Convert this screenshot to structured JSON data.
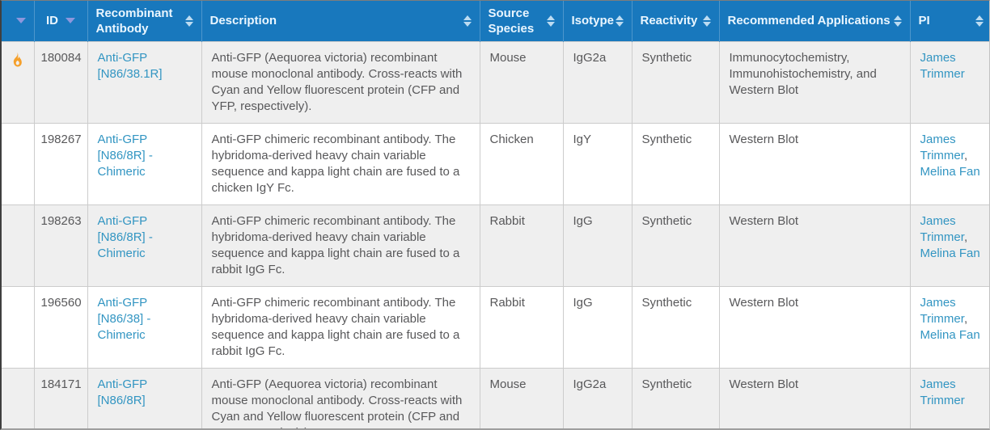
{
  "table": {
    "columns": [
      {
        "key": "hot",
        "label": "",
        "header_icon": "flame-icon",
        "sort_indicator": "dropdown-caret"
      },
      {
        "key": "id",
        "label": "ID",
        "sort_indicator": "dropdown-caret"
      },
      {
        "key": "antibody",
        "label": "Recombinant Antibody",
        "sort_indicator": "up-down-arrows"
      },
      {
        "key": "description",
        "label": "Description",
        "sort_indicator": "up-down-arrows"
      },
      {
        "key": "source",
        "label": "Source Species",
        "sort_indicator": "up-down-arrows"
      },
      {
        "key": "isotype",
        "label": "Isotype",
        "sort_indicator": "up-down-arrows"
      },
      {
        "key": "reactivity",
        "label": "Reactivity",
        "sort_indicator": "up-down-arrows"
      },
      {
        "key": "applications",
        "label": "Recommended Applications",
        "sort_indicator": "up-down-arrows"
      },
      {
        "key": "pi",
        "label": "PI",
        "sort_indicator": "up-down-arrows"
      }
    ],
    "rows": [
      {
        "hot": true,
        "id": "180084",
        "antibody": "Anti-GFP [N86/38.1R]",
        "description": "Anti-GFP (Aequorea victoria) recombinant mouse monoclonal antibody. Cross-reacts with Cyan and Yellow fluorescent protein (CFP and YFP, respectively).",
        "source": "Mouse",
        "isotype": "IgG2a",
        "reactivity": "Synthetic",
        "applications": "Immunocytochemistry, Immunohistochemistry, and Western Blot",
        "pi": [
          "James Trimmer"
        ]
      },
      {
        "hot": false,
        "id": "198267",
        "antibody": "Anti-GFP [N86/8R] - Chimeric",
        "description": "Anti-GFP chimeric recombinant antibody. The hybridoma-derived heavy chain variable sequence and kappa light chain are fused to a chicken IgY Fc.",
        "source": "Chicken",
        "isotype": "IgY",
        "reactivity": "Synthetic",
        "applications": "Western Blot",
        "pi": [
          "James Trimmer",
          "Melina Fan"
        ]
      },
      {
        "hot": false,
        "id": "198263",
        "antibody": "Anti-GFP [N86/8R] - Chimeric",
        "description": "Anti-GFP chimeric recombinant antibody. The hybridoma-derived heavy chain variable sequence and kappa light chain are fused to a rabbit IgG Fc.",
        "source": "Rabbit",
        "isotype": "IgG",
        "reactivity": "Synthetic",
        "applications": "Western Blot",
        "pi": [
          "James Trimmer",
          "Melina Fan"
        ]
      },
      {
        "hot": false,
        "id": "196560",
        "antibody": "Anti-GFP [N86/38] - Chimeric",
        "description": "Anti-GFP chimeric recombinant antibody. The hybridoma-derived heavy chain variable sequence and kappa light chain are fused to a rabbit IgG Fc.",
        "source": "Rabbit",
        "isotype": "IgG",
        "reactivity": "Synthetic",
        "applications": "Western Blot",
        "pi": [
          "James Trimmer",
          "Melina Fan"
        ]
      },
      {
        "hot": false,
        "id": "184171",
        "antibody": "Anti-GFP [N86/8R]",
        "description": "Anti-GFP (Aequorea victoria) recombinant mouse monoclonal antibody. Cross-reacts with Cyan and Yellow fluorescent protein (CFP and YFP, respectively).",
        "source": "Mouse",
        "isotype": "IgG2a",
        "reactivity": "Synthetic",
        "applications": "Western Blot",
        "pi": [
          "James Trimmer"
        ]
      }
    ]
  },
  "colors": {
    "header_bg": "#1878bd",
    "header_text": "#eaf6ff",
    "row_stripe": "#efefef",
    "row_white": "#ffffff",
    "cell_border": "#cccccc",
    "body_text": "#58585a",
    "link": "#3295c2",
    "flame_orange": "#f5a02b",
    "sort_arrow": "#bcdcf2",
    "dropdown_caret": "#8d97dd"
  }
}
